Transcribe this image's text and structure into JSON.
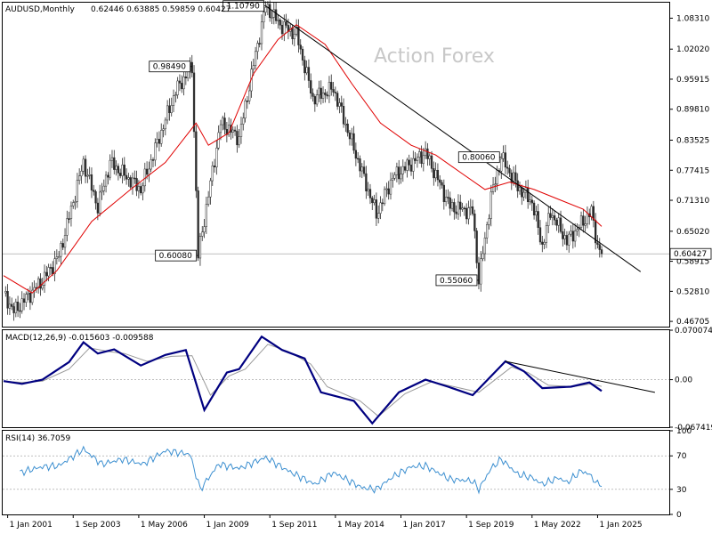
{
  "header": {
    "symbol": "AUDUSD,Monthly",
    "ohlc": "0.62446 0.63885 0.59859 0.60427"
  },
  "watermark": "Action Forex",
  "colors": {
    "candle": "#2b2b2b",
    "sma": "#e00000",
    "trendline": "#000000",
    "macd_line": "#000080",
    "macd_signal": "#9a9a9a",
    "rsi": "#3c8fd0",
    "grid": "#999999"
  },
  "chart_data": [
    {
      "type": "candlestick",
      "title": "AUDUSD,Monthly",
      "ylim": [
        0.4564,
        1.1146
      ],
      "yticks": [
        "1.08310",
        "1.02020",
        "0.95915",
        "0.89810",
        "0.83525",
        "0.77415",
        "0.71310",
        "0.65020",
        "0.58915",
        "0.52810",
        "0.46705"
      ],
      "last_price_label": "0.60427",
      "x_ticks": [
        "1 Jan 2001",
        "1 Sep 2003",
        "1 May 2006",
        "1 Jan 2009",
        "1 Sep 2011",
        "1 May 2014",
        "1 Jan 2017",
        "1 Sep 2019",
        "1 May 2022",
        "1 Jan 2025"
      ],
      "annotations": [
        {
          "text": "1.10790",
          "date": "2011-07",
          "value": 1.1079
        },
        {
          "text": "0.98490",
          "date": "2008-07",
          "value": 0.9849
        },
        {
          "text": "0.60080",
          "date": "2008-10",
          "value": 0.6008
        },
        {
          "text": "0.80060",
          "date": "2021-02",
          "value": 0.8006
        },
        {
          "text": "0.55060",
          "date": "2020-03",
          "value": 0.5506
        }
      ],
      "price_path": [
        {
          "date": "2000-11",
          "value": 0.525
        },
        {
          "date": "2001-04",
          "value": 0.487
        },
        {
          "date": "2002-06",
          "value": 0.55
        },
        {
          "date": "2003-02",
          "value": 0.6
        },
        {
          "date": "2004-02",
          "value": 0.79
        },
        {
          "date": "2004-09",
          "value": 0.7
        },
        {
          "date": "2005-03",
          "value": 0.79
        },
        {
          "date": "2006-06",
          "value": 0.735
        },
        {
          "date": "2007-11",
          "value": 0.935
        },
        {
          "date": "2008-07",
          "value": 0.9849
        },
        {
          "date": "2008-10",
          "value": 0.6008
        },
        {
          "date": "2009-09",
          "value": 0.87
        },
        {
          "date": "2010-06",
          "value": 0.84
        },
        {
          "date": "2011-02",
          "value": 1.01
        },
        {
          "date": "2011-07",
          "value": 1.1079
        },
        {
          "date": "2012-02",
          "value": 1.07
        },
        {
          "date": "2012-10",
          "value": 1.05
        },
        {
          "date": "2013-06",
          "value": 0.92
        },
        {
          "date": "2014-04",
          "value": 0.94
        },
        {
          "date": "2015-06",
          "value": 0.77
        },
        {
          "date": "2016-01",
          "value": 0.685
        },
        {
          "date": "2016-09",
          "value": 0.76
        },
        {
          "date": "2018-01",
          "value": 0.81
        },
        {
          "date": "2019-01",
          "value": 0.7
        },
        {
          "date": "2019-12",
          "value": 0.69
        },
        {
          "date": "2020-03",
          "value": 0.5506
        },
        {
          "date": "2020-09",
          "value": 0.72
        },
        {
          "date": "2021-02",
          "value": 0.8006
        },
        {
          "date": "2021-10",
          "value": 0.74
        },
        {
          "date": "2022-05",
          "value": 0.71
        },
        {
          "date": "2022-10",
          "value": 0.62
        },
        {
          "date": "2023-02",
          "value": 0.69
        },
        {
          "date": "2023-10",
          "value": 0.63
        },
        {
          "date": "2024-07",
          "value": 0.675
        },
        {
          "date": "2024-10",
          "value": 0.69
        },
        {
          "date": "2025-01",
          "value": 0.62
        },
        {
          "date": "2025-03",
          "value": 0.6043
        }
      ],
      "sma_path": [
        {
          "date": "2000-11",
          "value": 0.56
        },
        {
          "date": "2002-01",
          "value": 0.525
        },
        {
          "date": "2003-01",
          "value": 0.57
        },
        {
          "date": "2004-06",
          "value": 0.67
        },
        {
          "date": "2006-01",
          "value": 0.735
        },
        {
          "date": "2007-06",
          "value": 0.79
        },
        {
          "date": "2008-09",
          "value": 0.87
        },
        {
          "date": "2009-03",
          "value": 0.825
        },
        {
          "date": "2010-01",
          "value": 0.85
        },
        {
          "date": "2011-01",
          "value": 0.97
        },
        {
          "date": "2012-01",
          "value": 1.04
        },
        {
          "date": "2012-10",
          "value": 1.07
        },
        {
          "date": "2013-12",
          "value": 1.03
        },
        {
          "date": "2015-01",
          "value": 0.95
        },
        {
          "date": "2016-03",
          "value": 0.87
        },
        {
          "date": "2017-06",
          "value": 0.825
        },
        {
          "date": "2018-06",
          "value": 0.805
        },
        {
          "date": "2019-06",
          "value": 0.77
        },
        {
          "date": "2020-06",
          "value": 0.735
        },
        {
          "date": "2021-06",
          "value": 0.75
        },
        {
          "date": "2022-06",
          "value": 0.735
        },
        {
          "date": "2023-06",
          "value": 0.715
        },
        {
          "date": "2024-06",
          "value": 0.695
        },
        {
          "date": "2025-03",
          "value": 0.66
        }
      ],
      "trendline": [
        {
          "date": "2011-07",
          "value": 1.1079
        },
        {
          "date": "2026-10",
          "value": 0.568
        }
      ]
    },
    {
      "type": "line",
      "title": "MACD(12,26,9) -0.015603 -0.009588",
      "ylim": [
        -0.0674,
        0.0701
      ],
      "yticks": [
        "0.070074",
        "0.00",
        "-0.067419"
      ],
      "current_label": "0.00",
      "series": [
        {
          "name": "MACD",
          "values": [
            {
              "date": "2000-11",
              "value": -0.002
            },
            {
              "date": "2001-08",
              "value": -0.006
            },
            {
              "date": "2002-06",
              "value": 0.0
            },
            {
              "date": "2003-07",
              "value": 0.025
            },
            {
              "date": "2004-02",
              "value": 0.053
            },
            {
              "date": "2004-09",
              "value": 0.037
            },
            {
              "date": "2005-05",
              "value": 0.043
            },
            {
              "date": "2006-06",
              "value": 0.02
            },
            {
              "date": "2007-06",
              "value": 0.035
            },
            {
              "date": "2008-04",
              "value": 0.042
            },
            {
              "date": "2009-01",
              "value": -0.043
            },
            {
              "date": "2009-12",
              "value": 0.01
            },
            {
              "date": "2010-06",
              "value": 0.015
            },
            {
              "date": "2011-05",
              "value": 0.061
            },
            {
              "date": "2012-03",
              "value": 0.042
            },
            {
              "date": "2013-02",
              "value": 0.03
            },
            {
              "date": "2013-10",
              "value": -0.018
            },
            {
              "date": "2015-02",
              "value": -0.03
            },
            {
              "date": "2015-11",
              "value": -0.062
            },
            {
              "date": "2016-12",
              "value": -0.018
            },
            {
              "date": "2018-01",
              "value": 0.0
            },
            {
              "date": "2018-12",
              "value": -0.01
            },
            {
              "date": "2019-12",
              "value": -0.022
            },
            {
              "date": "2021-04",
              "value": 0.026
            },
            {
              "date": "2022-01",
              "value": 0.012
            },
            {
              "date": "2022-10",
              "value": -0.012
            },
            {
              "date": "2023-12",
              "value": -0.01
            },
            {
              "date": "2024-09",
              "value": -0.004
            },
            {
              "date": "2025-03",
              "value": -0.016
            }
          ]
        },
        {
          "name": "Signal",
          "values": [
            {
              "date": "2000-11",
              "value": -0.002
            },
            {
              "date": "2001-08",
              "value": -0.004
            },
            {
              "date": "2002-06",
              "value": -0.002
            },
            {
              "date": "2003-07",
              "value": 0.015
            },
            {
              "date": "2004-05",
              "value": 0.045
            },
            {
              "date": "2005-02",
              "value": 0.04
            },
            {
              "date": "2005-10",
              "value": 0.037
            },
            {
              "date": "2006-09",
              "value": 0.026
            },
            {
              "date": "2007-09",
              "value": 0.033
            },
            {
              "date": "2008-07",
              "value": 0.034
            },
            {
              "date": "2009-04",
              "value": -0.022
            },
            {
              "date": "2010-01",
              "value": 0.005
            },
            {
              "date": "2010-09",
              "value": 0.015
            },
            {
              "date": "2011-08",
              "value": 0.05
            },
            {
              "date": "2012-06",
              "value": 0.04
            },
            {
              "date": "2013-05",
              "value": 0.022
            },
            {
              "date": "2014-01",
              "value": -0.01
            },
            {
              "date": "2015-05",
              "value": -0.03
            },
            {
              "date": "2016-02",
              "value": -0.052
            },
            {
              "date": "2017-03",
              "value": -0.02
            },
            {
              "date": "2018-04",
              "value": -0.003
            },
            {
              "date": "2019-03",
              "value": -0.01
            },
            {
              "date": "2020-03",
              "value": -0.018
            },
            {
              "date": "2021-07",
              "value": 0.018
            },
            {
              "date": "2022-03",
              "value": 0.01
            },
            {
              "date": "2023-01",
              "value": -0.008
            },
            {
              "date": "2024-01",
              "value": -0.01
            },
            {
              "date": "2024-10",
              "value": -0.006
            },
            {
              "date": "2025-03",
              "value": -0.0096
            }
          ]
        }
      ],
      "trendline": [
        {
          "date": "2021-04",
          "value": 0.026
        },
        {
          "date": "2027-05",
          "value": -0.018
        }
      ]
    },
    {
      "type": "line",
      "title": "RSI(14) 36.7059",
      "ylim": [
        0,
        100
      ],
      "yticks": [
        "100",
        "70",
        "30",
        "0"
      ],
      "levels": [
        70,
        30
      ],
      "series": [
        {
          "name": "RSI(14)",
          "values": [
            {
              "date": "2001-07",
              "value": 50
            },
            {
              "date": "2002-06",
              "value": 57
            },
            {
              "date": "2003-02",
              "value": 58
            },
            {
              "date": "2004-02",
              "value": 78
            },
            {
              "date": "2004-11",
              "value": 60
            },
            {
              "date": "2005-09",
              "value": 66
            },
            {
              "date": "2006-07",
              "value": 60
            },
            {
              "date": "2007-06",
              "value": 76
            },
            {
              "date": "2008-06",
              "value": 72
            },
            {
              "date": "2008-11",
              "value": 30
            },
            {
              "date": "2009-08",
              "value": 60
            },
            {
              "date": "2010-06",
              "value": 55
            },
            {
              "date": "2011-07",
              "value": 68
            },
            {
              "date": "2012-06",
              "value": 52
            },
            {
              "date": "2013-07",
              "value": 36
            },
            {
              "date": "2014-04",
              "value": 50
            },
            {
              "date": "2015-06",
              "value": 32
            },
            {
              "date": "2016-01",
              "value": 30
            },
            {
              "date": "2016-09",
              "value": 45
            },
            {
              "date": "2017-06",
              "value": 57
            },
            {
              "date": "2018-01",
              "value": 58
            },
            {
              "date": "2019-01",
              "value": 42
            },
            {
              "date": "2019-12",
              "value": 40
            },
            {
              "date": "2020-03",
              "value": 30
            },
            {
              "date": "2020-09",
              "value": 55
            },
            {
              "date": "2021-02",
              "value": 66
            },
            {
              "date": "2021-10",
              "value": 48
            },
            {
              "date": "2022-05",
              "value": 44
            },
            {
              "date": "2022-10",
              "value": 36
            },
            {
              "date": "2023-06",
              "value": 44
            },
            {
              "date": "2023-10",
              "value": 38
            },
            {
              "date": "2024-05",
              "value": 52
            },
            {
              "date": "2024-09",
              "value": 48
            },
            {
              "date": "2025-01",
              "value": 36
            },
            {
              "date": "2025-03",
              "value": 36.7
            }
          ]
        }
      ]
    }
  ]
}
